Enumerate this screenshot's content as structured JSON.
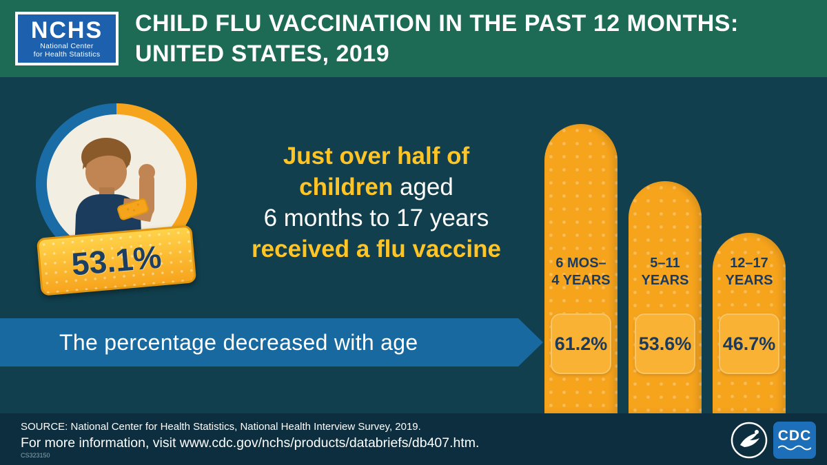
{
  "header": {
    "logo": {
      "acronym": "NCHS",
      "sub_line1": "National Center",
      "sub_line2": "for Health Statistics"
    },
    "title_line1": "CHILD FLU VACCINATION IN THE PAST 12 MONTHS:",
    "title_line2": "UNITED STATES, 2019"
  },
  "hero": {
    "stat_value": "53.1%",
    "headline_line1": "Just over half of",
    "headline_line2_emphasis": "children",
    "headline_line2_rest": " aged",
    "headline_line3": "6 months to 17 years",
    "headline_line4": "received a flu vaccine"
  },
  "ribbon": {
    "text": "The percentage decreased with age"
  },
  "chart_data": {
    "type": "bar",
    "title": "Percentage of children who received a flu vaccine in the past 12 months, by age group",
    "categories": [
      "6 MOS–4 YEARS",
      "5–11 YEARS",
      "12–17 YEARS"
    ],
    "values": [
      61.2,
      53.6,
      46.7
    ],
    "ylim": [
      0,
      100
    ],
    "legend_position": "none",
    "grid": false,
    "bars": [
      {
        "label_line1": "6 MOS–",
        "label_line2": "4 YEARS",
        "value_label": "61.2%"
      },
      {
        "label_line1": "5–11",
        "label_line2": "YEARS",
        "value_label": "53.6%"
      },
      {
        "label_line1": "12–17",
        "label_line2": "YEARS",
        "value_label": "46.7%"
      }
    ]
  },
  "footer": {
    "source": "SOURCE: National Center for Health Statistics, National Health Interview Survey, 2019.",
    "info": "For more information, visit www.cdc.gov/nchs/products/databriefs/db407.htm.",
    "code": "CS323150",
    "cdc_label": "CDC"
  },
  "icons": {
    "person_illustration": "child-flexing-arm-with-bandage",
    "hhs_logo": "hhs-eagle-seal",
    "cdc_logo": "cdc-logo"
  },
  "colors": {
    "header_green": "#1d6a55",
    "main_background": "#113f4d",
    "footer_background": "#0c2e3e",
    "ribbon_blue": "#17699f",
    "bar_orange": "#f7a41d",
    "accent_yellow": "#ffc425",
    "navy_text": "#1b3a5c",
    "logo_blue": "#1d61ae",
    "cdc_blue": "#1c6fb8"
  }
}
